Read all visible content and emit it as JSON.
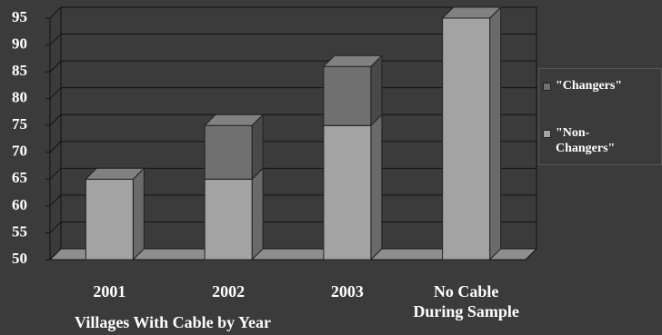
{
  "chart_data": {
    "type": "bar3d_stacked",
    "x_label": "Villages With Cable by Year",
    "categories": [
      "2001",
      "2002",
      "2003",
      "No Cable During Sample"
    ],
    "series": [
      {
        "name": "\"Non-Changers\"",
        "color": "#a3a3a3",
        "values": [
          65,
          65,
          75,
          95
        ]
      },
      {
        "name": "\"Changers\"",
        "color": "#707070",
        "values": [
          0,
          10,
          11,
          0
        ]
      }
    ],
    "ylim": [
      50,
      95
    ],
    "yticks": [
      50,
      55,
      60,
      65,
      70,
      75,
      80,
      85,
      90,
      95
    ],
    "grid": true
  }
}
